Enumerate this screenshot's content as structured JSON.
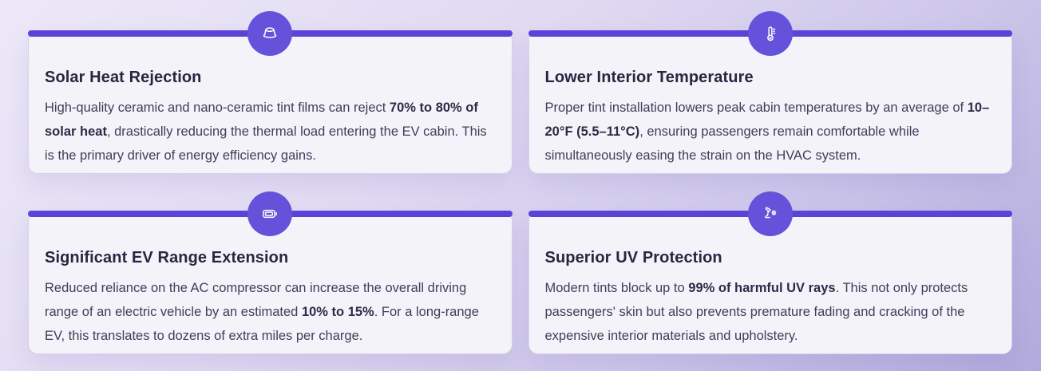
{
  "theme": {
    "background_top": "#ece8f8",
    "background_bottom": "#b1aadc",
    "accent_bar_color": "#5a43d7",
    "icon_circle_color": "#6452da",
    "card_background": "#f5f3fa",
    "title_color": "#2a2540",
    "body_color": "#413c59"
  },
  "cards": [
    {
      "icon": "sun-hat-icon",
      "title": "Solar Heat Rejection",
      "body": [
        {
          "text": "High-quality ceramic and nano-ceramic tint films can reject ",
          "bold": false
        },
        {
          "text": "70% to 80% of solar heat",
          "bold": true
        },
        {
          "text": ", drastically reducing the thermal load entering the EV cabin. This is the primary driver of energy efficiency gains.",
          "bold": false
        }
      ]
    },
    {
      "icon": "thermometer-icon",
      "title": "Lower Interior Temperature",
      "body": [
        {
          "text": "Proper tint installation lowers peak cabin temperatures by an average of ",
          "bold": false
        },
        {
          "text": "10–20°F (5.5–11°C)",
          "bold": true
        },
        {
          "text": ", ensuring passengers remain comfortable while simultaneously easing the strain on the HVAC system.",
          "bold": false
        }
      ]
    },
    {
      "icon": "battery-icon",
      "title": "Significant EV Range Extension",
      "body": [
        {
          "text": "Reduced reliance on the AC compressor can increase the overall driving range of an electric vehicle by an estimated ",
          "bold": false
        },
        {
          "text": "10% to 15%",
          "bold": true
        },
        {
          "text": ". For a long-range EV, this translates to dozens of extra miles per charge.",
          "bold": false
        }
      ]
    },
    {
      "icon": "desk-lamp-uv-icon",
      "title": "Superior UV Protection",
      "body": [
        {
          "text": "Modern tints block up to ",
          "bold": false
        },
        {
          "text": "99% of harmful UV rays",
          "bold": true
        },
        {
          "text": ". This not only protects passengers' skin but also prevents premature fading and cracking of the expensive interior materials and upholstery.",
          "bold": false
        }
      ]
    }
  ]
}
